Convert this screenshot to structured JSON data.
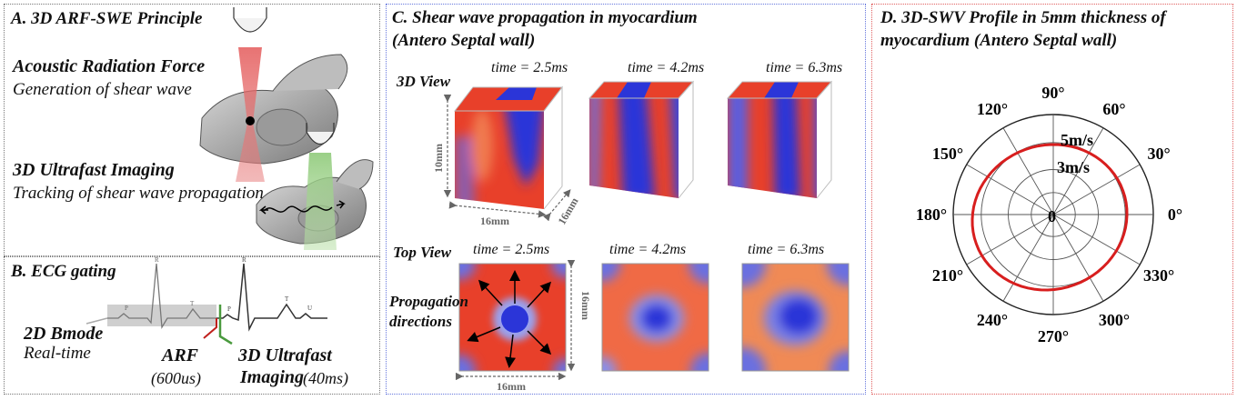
{
  "panel_a": {
    "title": "A.   3D ARF-SWE Principle",
    "arf_title": "Acoustic Radiation Force",
    "arf_desc": "Generation of shear wave",
    "imaging_title": "3D Ultrafast Imaging",
    "imaging_desc": "Tracking of shear wave propagation"
  },
  "panel_b": {
    "title": "B. ECG gating",
    "bmode_title": "2D Bmode",
    "bmode_desc": "Real-time",
    "arf_label": "ARF",
    "arf_duration": "(600us)",
    "imaging_title_1": "3D Ultrafast",
    "imaging_title_2": "Imaging",
    "imaging_duration": "(40ms)",
    "ecg_peaks": [
      "R",
      "T",
      "P",
      "R",
      "T",
      "U",
      "P"
    ]
  },
  "panel_c": {
    "title_1": "C. Shear wave propagation in myocardium",
    "title_2": "(Antero Septal wall)",
    "view_3d": "3D View",
    "view_top": "Top View",
    "times": [
      "time = 2.5ms",
      "time = 4.2ms",
      "time = 6.3ms"
    ],
    "dim_10": "10mm",
    "dim_16a": "16mm",
    "dim_16b": "16mm",
    "dim_16c": "16mm",
    "dim_16d": "16mm",
    "prop_1": "Propagation",
    "prop_2": "directions"
  },
  "panel_d": {
    "title_1": "D. 3D-SWV Profile in 5mm thickness of",
    "title_2": "myocardium (Antero Septal wall)",
    "ring_labels": [
      "5m/s",
      "3m/s"
    ],
    "center_label": "0",
    "angle_labels": [
      "0°",
      "30°",
      "60°",
      "90°",
      "120°",
      "150°",
      "180°",
      "210°",
      "240°",
      "270°",
      "300°",
      "330°"
    ]
  },
  "colors": {
    "red": "#e8402a",
    "blue": "#2b35d8",
    "polar_curve": "#d81e1e",
    "border_a": "#777777",
    "border_c": "#6677dd",
    "border_d": "#e06060"
  }
}
